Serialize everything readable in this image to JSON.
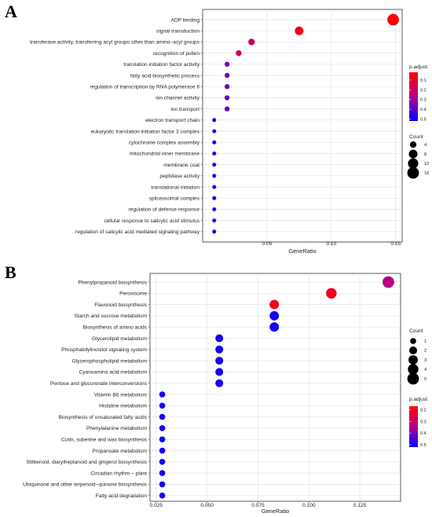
{
  "panels": {
    "a_label": "A",
    "b_label": "B"
  },
  "chart_data": [
    {
      "type": "scatter",
      "panel": "A",
      "title": "",
      "xlabel": "GeneRatio",
      "ylabel": "",
      "xlim": [
        0.0,
        0.155
      ],
      "xticks": [
        0.05,
        0.1,
        0.15
      ],
      "xtick_labels": [
        "0.05",
        "0.10",
        "0.15"
      ],
      "grid": true,
      "categories": [
        "ADP binding",
        "signal transduction",
        "transferase activity, transferring acyl groups other than amino−acyl groups",
        "recognition of pollen",
        "translation initiation factor activity",
        "fatty acid biosynthetic process",
        "regulation of transcription by RNA polymerase II",
        "ion channel activity",
        "ion transport",
        "electron transport chain",
        "eukaryotic translation initiation factor 3 complex",
        "cytochrome complex assembly",
        "mitochondrial inner membrane",
        "membrane coat",
        "peptidase activity",
        "translational initiation",
        "spliceosomal complex",
        "regulation of defense response",
        "cellular response to salicylic acid stimulus",
        "regulation of salicylic acid mediated signaling pathway"
      ],
      "gene_ratio": [
        0.148,
        0.075,
        0.038,
        0.028,
        0.019,
        0.019,
        0.019,
        0.019,
        0.019,
        0.009,
        0.009,
        0.009,
        0.009,
        0.009,
        0.009,
        0.009,
        0.009,
        0.009,
        0.009,
        0.009
      ],
      "count": [
        16,
        8,
        4,
        3,
        2,
        2,
        2,
        2,
        2,
        1,
        1,
        1,
        1,
        1,
        1,
        1,
        1,
        1,
        1,
        1
      ],
      "p_adjust": [
        0.02,
        0.05,
        0.2,
        0.18,
        0.35,
        0.36,
        0.36,
        0.37,
        0.38,
        0.5,
        0.5,
        0.5,
        0.5,
        0.5,
        0.5,
        0.5,
        0.5,
        0.5,
        0.5,
        0.5
      ],
      "color_legend": {
        "title": "p.adjust",
        "range": [
          0.02,
          0.52
        ],
        "ticks": [
          0.1,
          0.2,
          0.3,
          0.4,
          0.5
        ],
        "tick_labels": [
          "0.1",
          "0.2",
          "0.3",
          "0.4",
          "0.5"
        ],
        "color_low": "#ff0000",
        "color_high": "#0000ff",
        "placement": "right"
      },
      "size_legend": {
        "title": "Count",
        "values": [
          4,
          8,
          12,
          16
        ],
        "labels": [
          "4",
          "8",
          "12",
          "16"
        ],
        "max_count": 16,
        "placement": "right"
      }
    },
    {
      "type": "scatter",
      "panel": "B",
      "title": "",
      "xlabel": "GeneRatio",
      "ylabel": "",
      "xlim": [
        0.022,
        0.145
      ],
      "xticks": [
        0.025,
        0.05,
        0.075,
        0.1,
        0.125
      ],
      "xtick_labels": [
        "0.025",
        "0.050",
        "0.075",
        "0.100",
        "0.125"
      ],
      "grid": true,
      "categories": [
        "Phenylpropanoid biosynthesis",
        "Peroxisome",
        "Flavonoid biosynthesis",
        "Starch and sucrose metabolism",
        "Biosynthesis of amino acids",
        "Glycerolipid metabolism",
        "Phosphatidylinositol signaling system",
        "Glycerophospholipid metabolism",
        "Cyanoamino acid metabolism",
        "Pentose and glucuronate interconversions",
        "Vitamin B6 metabolism",
        "Histidine metabolism",
        "Biosynthesis of unsaturated fatty acids",
        "Phenylalanine metabolism",
        "Cutin, suberine and wax biosynthesis",
        "Propanoate metabolism",
        "Stilbenoid, diarylheptanoid and gingerol biosynthesis",
        "Circadian rhythm − plant",
        "Ubiquinone and other terpenoid−quinone biosynthesis",
        "Fatty acid degradation"
      ],
      "gene_ratio": [
        0.139,
        0.111,
        0.083,
        0.083,
        0.083,
        0.056,
        0.056,
        0.056,
        0.056,
        0.056,
        0.028,
        0.028,
        0.028,
        0.028,
        0.028,
        0.028,
        0.028,
        0.028,
        0.028,
        0.028
      ],
      "count": [
        5,
        4,
        3,
        3,
        3,
        2,
        2,
        2,
        2,
        2,
        1,
        1,
        1,
        1,
        1,
        1,
        1,
        1,
        1,
        1
      ],
      "p_adjust": [
        0.33,
        0.2,
        0.2,
        0.5,
        0.5,
        0.5,
        0.5,
        0.5,
        0.5,
        0.5,
        0.5,
        0.5,
        0.5,
        0.5,
        0.5,
        0.5,
        0.5,
        0.5,
        0.5,
        0.5
      ],
      "color_legend": {
        "title": "p.adjust",
        "range": [
          0.17,
          0.52
        ],
        "ticks": [
          0.2,
          0.3,
          0.4,
          0.5
        ],
        "tick_labels": [
          "0.2",
          "0.3",
          "0.4",
          "0.5"
        ],
        "color_low": "#ff0000",
        "color_high": "#0000ff",
        "placement": "right"
      },
      "size_legend": {
        "title": "Count",
        "values": [
          1,
          2,
          3,
          4,
          5
        ],
        "labels": [
          "1",
          "2",
          "3",
          "4",
          "5"
        ],
        "max_count": 5,
        "placement": "right"
      }
    }
  ]
}
